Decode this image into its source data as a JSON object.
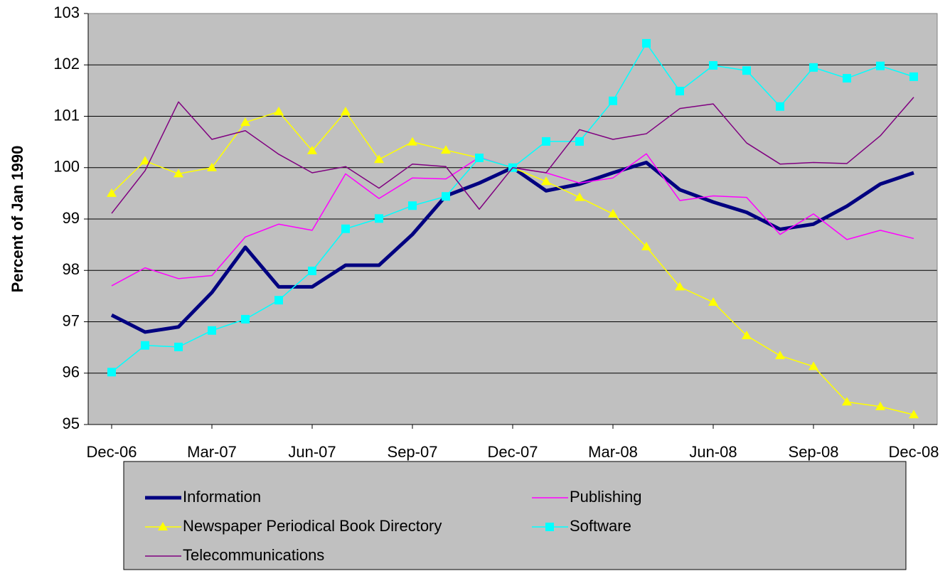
{
  "chart_data": {
    "type": "line",
    "y_label": "Percent of Jan 1990",
    "categories": [
      "Dec-06",
      null,
      null,
      "Mar-07",
      null,
      null,
      "Jun-07",
      null,
      null,
      "Sep-07",
      null,
      null,
      "Dec-07",
      null,
      null,
      "Mar-08",
      null,
      null,
      "Jun-08",
      null,
      null,
      "Sep-08",
      null,
      null,
      "Dec-08"
    ],
    "ylim": [
      95,
      103
    ],
    "yticks": [
      95,
      96,
      97,
      98,
      99,
      100,
      101,
      102,
      103
    ],
    "grid": true,
    "series": [
      {
        "name": "Information",
        "color": "#000080",
        "line_width": 5,
        "marker": "none",
        "values": [
          97.13,
          96.8,
          96.9,
          97.57,
          98.45,
          97.68,
          97.68,
          98.1,
          98.1,
          98.7,
          99.45,
          99.7,
          100.0,
          99.55,
          99.68,
          99.9,
          100.1,
          99.57,
          99.33,
          99.13,
          98.8,
          98.9,
          99.25,
          99.68,
          99.9
        ]
      },
      {
        "name": "Publishing",
        "color": "#ff00ff",
        "line_width": 1.5,
        "marker": "none",
        "values": [
          97.7,
          98.05,
          97.84,
          97.9,
          98.65,
          98.9,
          98.78,
          99.88,
          99.4,
          99.8,
          99.78,
          100.2,
          100.0,
          99.9,
          99.7,
          99.8,
          100.27,
          99.36,
          99.45,
          99.42,
          98.7,
          99.1,
          98.6,
          98.78,
          98.62
        ]
      },
      {
        "name": "Newspaper Periodical Book Directory",
        "color": "#ffff00",
        "line_width": 1.5,
        "marker": "triangle",
        "values": [
          99.5,
          100.13,
          99.88,
          100.0,
          100.88,
          101.09,
          100.33,
          101.09,
          100.16,
          100.5,
          100.34,
          100.19,
          100.0,
          99.73,
          99.42,
          99.1,
          98.46,
          97.68,
          97.38,
          96.73,
          96.34,
          96.13,
          95.44,
          95.35,
          95.19
        ]
      },
      {
        "name": "Software",
        "color": "#00ffff",
        "line_width": 1.5,
        "marker": "square",
        "values": [
          96.02,
          96.54,
          96.51,
          96.83,
          97.05,
          97.42,
          97.99,
          98.81,
          99.01,
          99.26,
          99.44,
          100.19,
          100.0,
          100.51,
          100.51,
          101.3,
          102.42,
          101.49,
          101.99,
          101.89,
          101.19,
          101.95,
          101.74,
          101.98,
          101.77
        ]
      },
      {
        "name": "Telecommunications",
        "color": "#800080",
        "line_width": 1.5,
        "marker": "none",
        "values": [
          99.11,
          99.94,
          101.28,
          100.55,
          100.72,
          100.26,
          99.9,
          100.02,
          99.6,
          100.07,
          100.02,
          99.19,
          100.0,
          99.9,
          100.74,
          100.55,
          100.66,
          101.15,
          101.24,
          100.48,
          100.07,
          100.1,
          100.08,
          100.62,
          101.37
        ]
      }
    ]
  }
}
